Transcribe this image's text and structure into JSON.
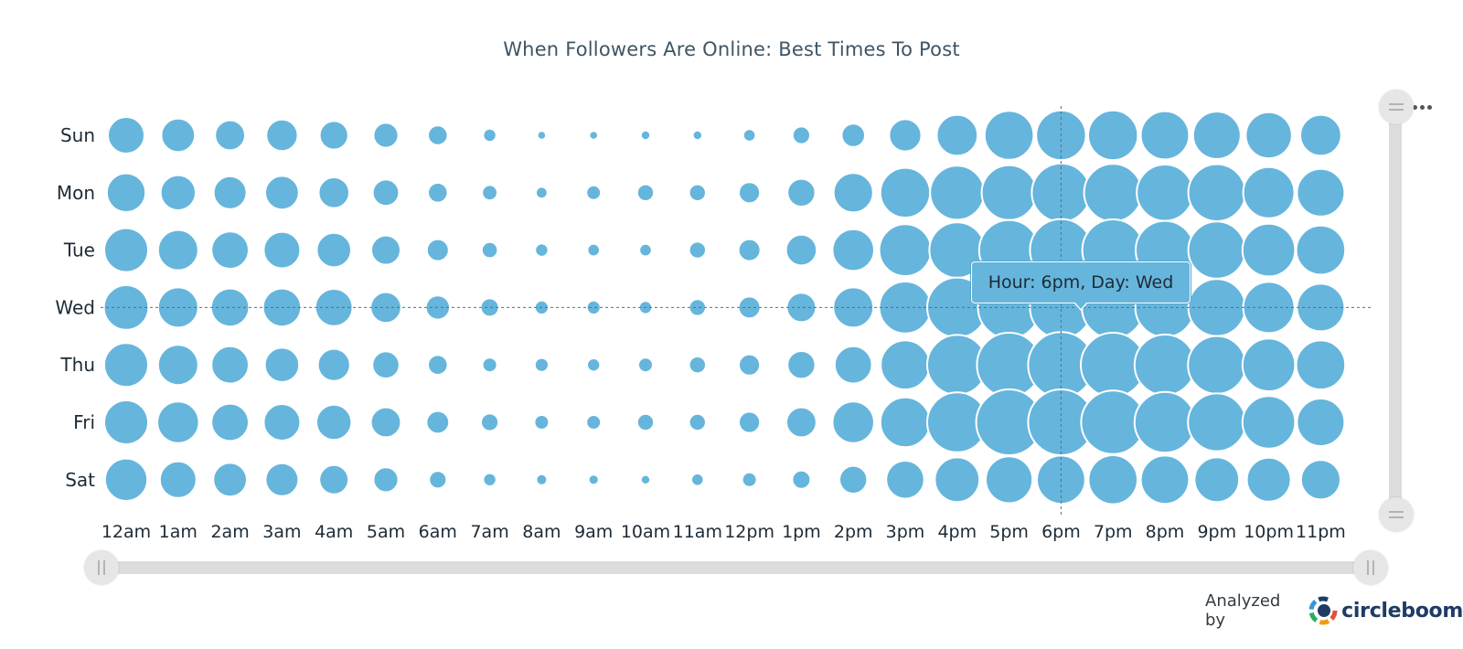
{
  "chart_data": {
    "type": "bubble",
    "title": "When Followers Are Online: Best Times To Post",
    "xlabel": "",
    "ylabel": "",
    "days": [
      "Sun",
      "Mon",
      "Tue",
      "Wed",
      "Thu",
      "Fri",
      "Sat"
    ],
    "hours": [
      "12am",
      "1am",
      "2am",
      "3am",
      "4am",
      "5am",
      "6am",
      "7am",
      "8am",
      "9am",
      "10am",
      "11am",
      "12pm",
      "1pm",
      "2pm",
      "3pm",
      "4pm",
      "5pm",
      "6pm",
      "7pm",
      "8pm",
      "9pm",
      "10pm",
      "11pm"
    ],
    "values": [
      [
        50,
        46,
        41,
        43,
        39,
        34,
        27,
        18,
        12,
        12,
        13,
        13,
        17,
        24,
        32,
        44,
        56,
        67,
        68,
        68,
        66,
        65,
        63,
        56
      ],
      [
        53,
        48,
        45,
        46,
        42,
        36,
        27,
        21,
        16,
        20,
        23,
        23,
        29,
        38,
        54,
        68,
        74,
        75,
        80,
        79,
        77,
        78,
        70,
        65
      ],
      [
        60,
        55,
        51,
        50,
        47,
        40,
        30,
        22,
        18,
        17,
        17,
        23,
        30,
        42,
        57,
        71,
        76,
        82,
        85,
        84,
        80,
        78,
        72,
        67
      ],
      [
        61,
        55,
        52,
        52,
        51,
        42,
        33,
        25,
        19,
        19,
        18,
        23,
        30,
        40,
        55,
        71,
        82,
        85,
        85,
        85,
        81,
        78,
        70,
        65
      ],
      [
        60,
        55,
        51,
        47,
        44,
        37,
        27,
        20,
        19,
        18,
        20,
        23,
        29,
        38,
        51,
        67,
        82,
        88,
        90,
        88,
        83,
        79,
        72,
        67
      ],
      [
        60,
        57,
        51,
        50,
        48,
        41,
        31,
        24,
        20,
        20,
        23,
        23,
        29,
        41,
        57,
        68,
        82,
        90,
        90,
        87,
        83,
        79,
        72,
        65
      ],
      [
        58,
        50,
        46,
        45,
        40,
        34,
        24,
        18,
        15,
        14,
        13,
        17,
        20,
        25,
        38,
        52,
        61,
        64,
        66,
        67,
        66,
        61,
        60,
        54
      ]
    ],
    "grid": false,
    "legend": "none"
  },
  "tooltip": {
    "text": "Hour: 6pm, Day: Wed",
    "hour": "6pm",
    "day": "Wed"
  },
  "credit": {
    "analyzed_by": "Analyzed by",
    "brand": "circleboom"
  },
  "colors": {
    "bubble": "#66b5dc",
    "title": "#3f5564",
    "brand": "#1f3b66"
  },
  "icons": {
    "menu": "more-dots-icon",
    "h_handle": "grip-vertical-icon",
    "v_handle": "grip-horizontal-icon",
    "logo": "circleboom-logo-icon"
  }
}
